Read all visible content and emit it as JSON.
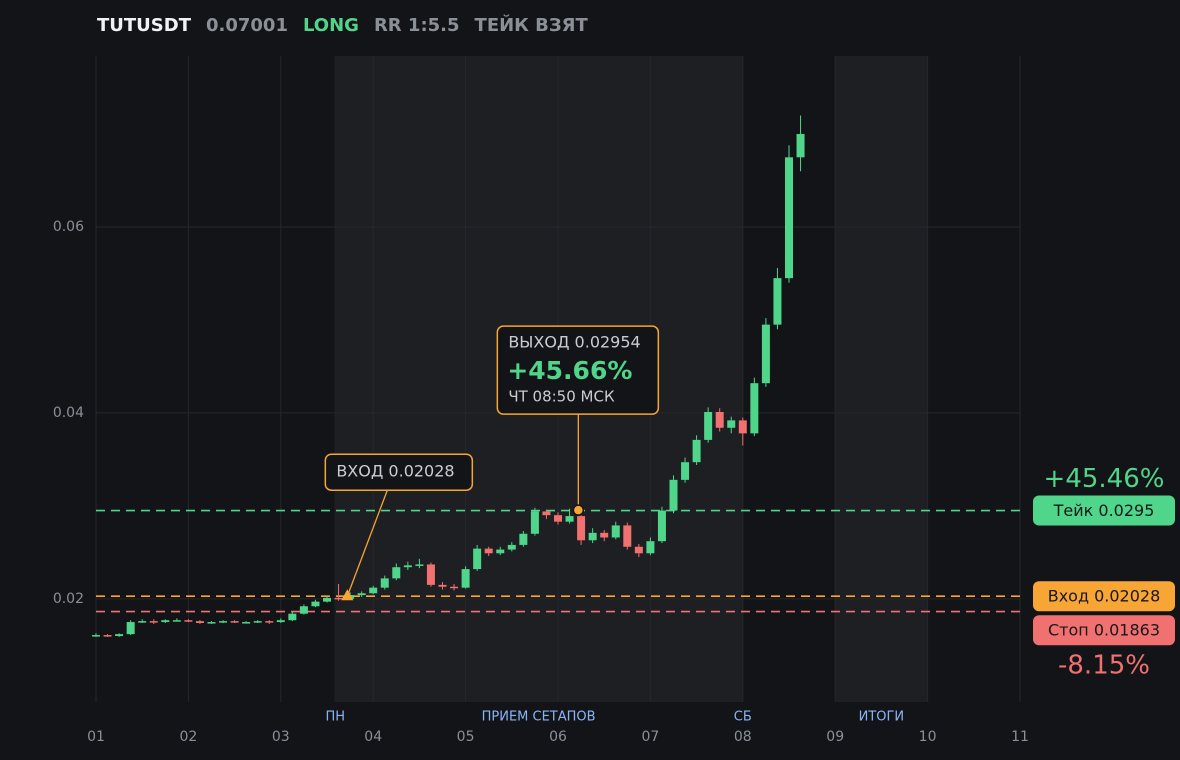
{
  "header": {
    "symbol": "TUTUSDT",
    "price": "0.07001",
    "side": "LONG",
    "rr": "RR 1:5.5",
    "status": "ТЕЙК ВЗЯТ"
  },
  "chart_data": {
    "type": "candlestick",
    "xlim": [
      1,
      11
    ],
    "xticks": [
      {
        "value": 1,
        "label": "01"
      },
      {
        "value": 2,
        "label": "02"
      },
      {
        "value": 3,
        "label": "03"
      },
      {
        "value": 4,
        "label": "04"
      },
      {
        "value": 5,
        "label": "05"
      },
      {
        "value": 6,
        "label": "06"
      },
      {
        "value": 7,
        "label": "07"
      },
      {
        "value": 8,
        "label": "08"
      },
      {
        "value": 9,
        "label": "09"
      },
      10,
      11
    ],
    "ylim": [
      0.0089,
      0.0784
    ],
    "yticks": [
      0.02,
      0.04,
      0.06
    ],
    "grid": true,
    "up_color": "#4fd68a",
    "down_color": "#f0716f",
    "x": [
      1,
      1.125,
      1.25,
      1.375,
      1.5,
      1.625,
      1.75,
      1.875,
      2,
      2.125,
      2.25,
      2.375,
      2.5,
      2.625,
      2.75,
      2.875,
      3,
      3.125,
      3.25,
      3.375,
      3.5,
      3.625,
      3.75,
      3.875,
      4,
      4.125,
      4.25,
      4.375,
      4.5,
      4.625,
      4.75,
      4.875,
      5,
      5.125,
      5.25,
      5.375,
      5.5,
      5.625,
      5.75,
      5.875,
      6,
      6.125,
      6.25,
      6.375,
      6.5,
      6.625,
      6.75,
      6.875,
      7,
      7.125,
      7.25,
      7.375,
      7.5,
      7.625,
      7.75,
      7.875,
      8,
      8.125,
      8.25,
      8.375,
      8.5,
      8.625
    ],
    "ohlc": [
      [
        0.016,
        0.0163,
        0.0159,
        0.0161
      ],
      [
        0.0161,
        0.0162,
        0.0159,
        0.016
      ],
      [
        0.016,
        0.0163,
        0.0159,
        0.0162
      ],
      [
        0.0162,
        0.0177,
        0.0161,
        0.0175
      ],
      [
        0.0175,
        0.0178,
        0.0174,
        0.0176
      ],
      [
        0.0176,
        0.0178,
        0.0173,
        0.0175
      ],
      [
        0.0175,
        0.0178,
        0.0174,
        0.0177
      ],
      [
        0.0177,
        0.0179,
        0.0176,
        0.0177
      ],
      [
        0.0177,
        0.0178,
        0.0175,
        0.0176
      ],
      [
        0.0176,
        0.0177,
        0.0173,
        0.0174
      ],
      [
        0.0174,
        0.0176,
        0.0173,
        0.0175
      ],
      [
        0.0175,
        0.0177,
        0.0174,
        0.0176
      ],
      [
        0.0176,
        0.0177,
        0.0174,
        0.0175
      ],
      [
        0.0175,
        0.0176,
        0.0174,
        0.0175
      ],
      [
        0.0175,
        0.0177,
        0.0174,
        0.0176
      ],
      [
        0.0176,
        0.0177,
        0.0173,
        0.0175
      ],
      [
        0.0175,
        0.0179,
        0.0174,
        0.0177
      ],
      [
        0.0177,
        0.0186,
        0.0176,
        0.0184
      ],
      [
        0.0184,
        0.0194,
        0.0183,
        0.0192
      ],
      [
        0.0192,
        0.0199,
        0.0191,
        0.0197
      ],
      [
        0.0197,
        0.0203,
        0.0196,
        0.0201
      ],
      [
        0.0201,
        0.0216,
        0.0198,
        0.02
      ],
      [
        0.02,
        0.0207,
        0.0199,
        0.0204
      ],
      [
        0.0204,
        0.0208,
        0.0202,
        0.0206
      ],
      [
        0.0206,
        0.0214,
        0.0205,
        0.0212
      ],
      [
        0.0212,
        0.0225,
        0.021,
        0.0222
      ],
      [
        0.0222,
        0.0238,
        0.022,
        0.0234
      ],
      [
        0.0234,
        0.024,
        0.0231,
        0.0236
      ],
      [
        0.0236,
        0.0243,
        0.0233,
        0.0237
      ],
      [
        0.0237,
        0.0239,
        0.0213,
        0.0215
      ],
      [
        0.0215,
        0.0218,
        0.021,
        0.0213
      ],
      [
        0.0213,
        0.0216,
        0.0209,
        0.0212
      ],
      [
        0.0212,
        0.0235,
        0.0211,
        0.0232
      ],
      [
        0.0232,
        0.0258,
        0.023,
        0.0254
      ],
      [
        0.0254,
        0.0256,
        0.0246,
        0.0249
      ],
      [
        0.0249,
        0.0256,
        0.0247,
        0.0253
      ],
      [
        0.0253,
        0.0261,
        0.0251,
        0.0258
      ],
      [
        0.0258,
        0.0273,
        0.0256,
        0.027
      ],
      [
        0.027,
        0.0298,
        0.0268,
        0.0294
      ],
      [
        0.0294,
        0.0296,
        0.0286,
        0.029
      ],
      [
        0.029,
        0.0293,
        0.028,
        0.0283
      ],
      [
        0.0283,
        0.0297,
        0.0281,
        0.0289
      ],
      [
        0.0289,
        0.0291,
        0.0258,
        0.0263
      ],
      [
        0.0263,
        0.0276,
        0.026,
        0.0271
      ],
      [
        0.0271,
        0.0274,
        0.0262,
        0.0266
      ],
      [
        0.0266,
        0.0283,
        0.0264,
        0.0279
      ],
      [
        0.0279,
        0.0282,
        0.0253,
        0.0256
      ],
      [
        0.0256,
        0.0259,
        0.0245,
        0.0249
      ],
      [
        0.0249,
        0.0266,
        0.0247,
        0.0262
      ],
      [
        0.0262,
        0.0299,
        0.026,
        0.0295
      ],
      [
        0.0295,
        0.0333,
        0.0292,
        0.0328
      ],
      [
        0.0328,
        0.0352,
        0.0325,
        0.0347
      ],
      [
        0.0347,
        0.0376,
        0.0344,
        0.0371
      ],
      [
        0.0371,
        0.0406,
        0.0368,
        0.0401
      ],
      [
        0.0401,
        0.0405,
        0.038,
        0.0384
      ],
      [
        0.0384,
        0.0396,
        0.0378,
        0.0392
      ],
      [
        0.0392,
        0.0395,
        0.0365,
        0.0378
      ],
      [
        0.0378,
        0.0438,
        0.0375,
        0.0432
      ],
      [
        0.0432,
        0.0502,
        0.0428,
        0.0495
      ],
      [
        0.0495,
        0.0556,
        0.049,
        0.0545
      ],
      [
        0.0545,
        0.0688,
        0.054,
        0.0675
      ],
      [
        0.0675,
        0.072,
        0.066,
        0.07001
      ]
    ],
    "shaded": [
      [
        3.58,
        8
      ],
      [
        9,
        10
      ]
    ],
    "sessions": [
      {
        "label": "ПН",
        "x": 3.59
      },
      {
        "label": "ПРИЕМ СЕТАПОВ",
        "x": 5.79
      },
      {
        "label": "СБ",
        "x": 8
      },
      {
        "label": "ИТОГИ",
        "x": 9.5
      }
    ],
    "levels": [
      {
        "label": "Тейк 0.0295",
        "value": 0.0295,
        "color": "#4fd68a",
        "change": "+45.46%"
      },
      {
        "label": "Вход 0.02028",
        "value": 0.02028,
        "color": "#f7a534"
      },
      {
        "label": "Стоп 0.01863",
        "value": 0.01863,
        "color": "#f0716f",
        "change": "-8.15%"
      }
    ],
    "entry": {
      "label": "ВХОД 0.02028",
      "x": 3.72,
      "y": 0.02028
    },
    "exit": {
      "label": "ВЫХОД 0.02954",
      "change": "+45.66%",
      "time": "ЧТ 08:50 МСК",
      "x": 6.22,
      "y": 0.02954
    }
  }
}
